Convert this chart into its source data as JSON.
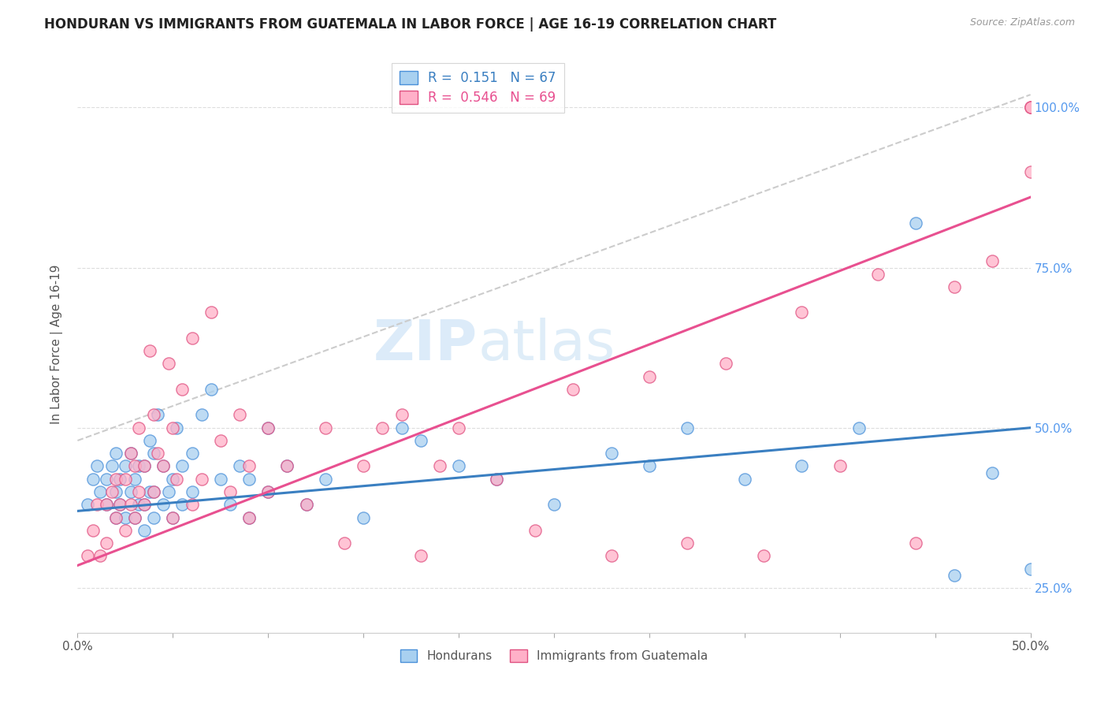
{
  "title": "HONDURAN VS IMMIGRANTS FROM GUATEMALA IN LABOR FORCE | AGE 16-19 CORRELATION CHART",
  "source": "Source: ZipAtlas.com",
  "ylabel": "In Labor Force | Age 16-19",
  "ytick_vals": [
    0.25,
    0.5,
    0.75,
    1.0
  ],
  "ytick_labels": [
    "25.0%",
    "50.0%",
    "75.0%",
    "100.0%"
  ],
  "xlim": [
    0.0,
    0.5
  ],
  "ylim": [
    0.18,
    1.08
  ],
  "blue_color": "#a8d0f0",
  "pink_color": "#ffb0c8",
  "blue_edge_color": "#4a90d9",
  "pink_edge_color": "#e05080",
  "blue_line_color": "#3a7fc1",
  "pink_line_color": "#e85090",
  "right_tick_color": "#5599ee",
  "R_blue": 0.151,
  "N_blue": 67,
  "R_pink": 0.546,
  "N_pink": 69,
  "legend_label_blue": "Hondurans",
  "legend_label_pink": "Immigrants from Guatemala",
  "blue_line_y0": 0.37,
  "blue_line_y1": 0.5,
  "pink_line_y0": 0.285,
  "pink_line_y1": 0.86,
  "dash_line_x": [
    0.0,
    0.5
  ],
  "dash_line_y": [
    0.48,
    1.02
  ],
  "blue_scatter_x": [
    0.005,
    0.008,
    0.01,
    0.012,
    0.015,
    0.015,
    0.018,
    0.02,
    0.02,
    0.02,
    0.022,
    0.022,
    0.025,
    0.025,
    0.028,
    0.028,
    0.03,
    0.03,
    0.032,
    0.032,
    0.035,
    0.035,
    0.035,
    0.038,
    0.038,
    0.04,
    0.04,
    0.04,
    0.042,
    0.045,
    0.045,
    0.048,
    0.05,
    0.05,
    0.052,
    0.055,
    0.055,
    0.06,
    0.06,
    0.065,
    0.07,
    0.075,
    0.08,
    0.085,
    0.09,
    0.09,
    0.1,
    0.1,
    0.11,
    0.12,
    0.13,
    0.15,
    0.17,
    0.18,
    0.2,
    0.22,
    0.25,
    0.28,
    0.3,
    0.32,
    0.35,
    0.38,
    0.41,
    0.44,
    0.46,
    0.48,
    0.5
  ],
  "blue_scatter_y": [
    0.38,
    0.42,
    0.44,
    0.4,
    0.38,
    0.42,
    0.44,
    0.36,
    0.4,
    0.46,
    0.38,
    0.42,
    0.36,
    0.44,
    0.4,
    0.46,
    0.36,
    0.42,
    0.38,
    0.44,
    0.34,
    0.38,
    0.44,
    0.4,
    0.48,
    0.36,
    0.4,
    0.46,
    0.52,
    0.38,
    0.44,
    0.4,
    0.36,
    0.42,
    0.5,
    0.38,
    0.44,
    0.4,
    0.46,
    0.52,
    0.56,
    0.42,
    0.38,
    0.44,
    0.36,
    0.42,
    0.4,
    0.5,
    0.44,
    0.38,
    0.42,
    0.36,
    0.5,
    0.48,
    0.44,
    0.42,
    0.38,
    0.46,
    0.44,
    0.5,
    0.42,
    0.44,
    0.5,
    0.82,
    0.27,
    0.43,
    0.28
  ],
  "pink_scatter_x": [
    0.005,
    0.008,
    0.01,
    0.012,
    0.015,
    0.015,
    0.018,
    0.02,
    0.02,
    0.022,
    0.025,
    0.025,
    0.028,
    0.028,
    0.03,
    0.03,
    0.032,
    0.032,
    0.035,
    0.035,
    0.038,
    0.04,
    0.04,
    0.042,
    0.045,
    0.048,
    0.05,
    0.05,
    0.052,
    0.055,
    0.06,
    0.06,
    0.065,
    0.07,
    0.075,
    0.08,
    0.085,
    0.09,
    0.09,
    0.1,
    0.1,
    0.11,
    0.12,
    0.13,
    0.14,
    0.15,
    0.16,
    0.17,
    0.18,
    0.19,
    0.2,
    0.22,
    0.24,
    0.26,
    0.28,
    0.3,
    0.32,
    0.34,
    0.36,
    0.38,
    0.4,
    0.42,
    0.44,
    0.46,
    0.48,
    0.5,
    0.5,
    0.5,
    0.5
  ],
  "pink_scatter_y": [
    0.3,
    0.34,
    0.38,
    0.3,
    0.32,
    0.38,
    0.4,
    0.36,
    0.42,
    0.38,
    0.34,
    0.42,
    0.46,
    0.38,
    0.36,
    0.44,
    0.4,
    0.5,
    0.38,
    0.44,
    0.62,
    0.4,
    0.52,
    0.46,
    0.44,
    0.6,
    0.36,
    0.5,
    0.42,
    0.56,
    0.38,
    0.64,
    0.42,
    0.68,
    0.48,
    0.4,
    0.52,
    0.36,
    0.44,
    0.4,
    0.5,
    0.44,
    0.38,
    0.5,
    0.32,
    0.44,
    0.5,
    0.52,
    0.3,
    0.44,
    0.5,
    0.42,
    0.34,
    0.56,
    0.3,
    0.58,
    0.32,
    0.6,
    0.3,
    0.68,
    0.44,
    0.74,
    0.32,
    0.72,
    0.76,
    0.9,
    1.0,
    1.0,
    1.0
  ]
}
